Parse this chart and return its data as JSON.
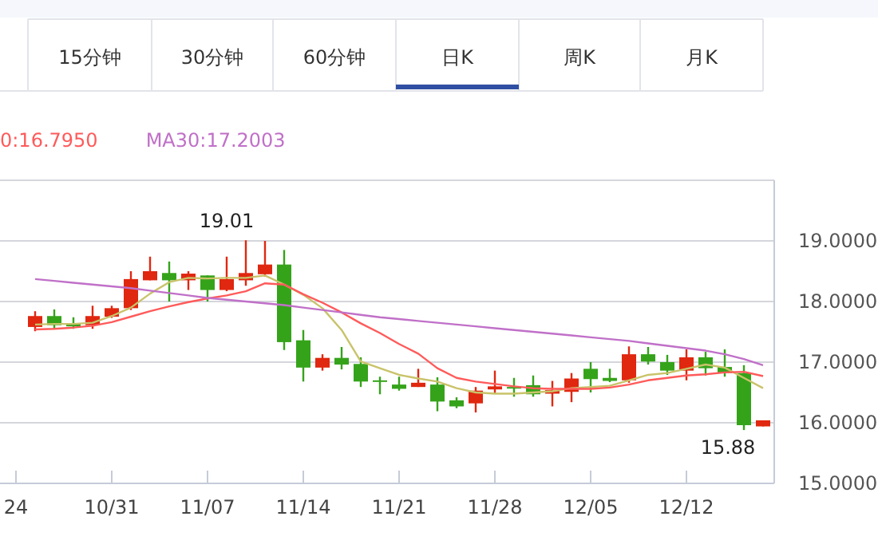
{
  "chart_data": {
    "type": "candlestick",
    "categories": [
      "24",
      null,
      null,
      null,
      null,
      "10/31",
      null,
      null,
      null,
      null,
      "11/07",
      null,
      null,
      null,
      null,
      "11/14",
      null,
      null,
      null,
      null,
      "11/21",
      null,
      null,
      null,
      null,
      "11/28",
      null,
      null,
      null,
      null,
      "12/05",
      null,
      null,
      null,
      null,
      "12/12",
      null,
      null,
      null,
      null
    ],
    "ohlc": [
      null,
      [
        17.58,
        17.84,
        17.51,
        17.76
      ],
      [
        17.76,
        17.87,
        17.55,
        17.61
      ],
      [
        17.63,
        17.74,
        17.55,
        17.59
      ],
      [
        17.61,
        17.93,
        17.55,
        17.76
      ],
      [
        17.75,
        17.93,
        17.73,
        17.89
      ],
      [
        17.89,
        18.5,
        17.86,
        18.37
      ],
      [
        18.35,
        18.74,
        18.35,
        18.5
      ],
      [
        18.47,
        18.66,
        18.0,
        18.35
      ],
      [
        18.35,
        18.5,
        18.19,
        18.46
      ],
      [
        18.43,
        18.43,
        18.0,
        18.19
      ],
      [
        18.19,
        18.74,
        18.17,
        18.37
      ],
      [
        18.35,
        19.01,
        18.26,
        18.47
      ],
      [
        18.45,
        19.0,
        18.41,
        18.61
      ],
      [
        18.61,
        18.85,
        17.2,
        17.33
      ],
      [
        17.36,
        17.53,
        16.68,
        16.91
      ],
      [
        16.91,
        17.13,
        16.86,
        17.07
      ],
      [
        17.07,
        17.25,
        16.88,
        16.96
      ],
      [
        16.97,
        17.08,
        16.59,
        16.68
      ],
      [
        16.7,
        16.76,
        16.47,
        16.68
      ],
      [
        16.63,
        16.76,
        16.53,
        16.56
      ],
      [
        16.59,
        16.89,
        16.59,
        16.66
      ],
      [
        16.63,
        16.75,
        16.19,
        16.35
      ],
      [
        16.37,
        16.42,
        16.24,
        16.27
      ],
      [
        16.32,
        16.59,
        16.17,
        16.53
      ],
      [
        16.55,
        16.86,
        16.48,
        16.6
      ],
      [
        16.59,
        16.74,
        16.43,
        16.57
      ],
      [
        16.62,
        16.78,
        16.43,
        16.47
      ],
      [
        16.48,
        16.69,
        16.27,
        16.54
      ],
      [
        16.51,
        16.82,
        16.34,
        16.73
      ],
      [
        16.89,
        17.0,
        16.5,
        16.72
      ],
      [
        16.74,
        16.89,
        16.67,
        16.69
      ],
      [
        16.7,
        17.26,
        16.66,
        17.13
      ],
      [
        17.13,
        17.25,
        16.96,
        17.01
      ],
      [
        17.0,
        17.12,
        16.79,
        16.86
      ],
      [
        16.86,
        17.21,
        16.7,
        17.08
      ],
      [
        17.08,
        17.17,
        16.78,
        16.9
      ],
      [
        16.92,
        17.21,
        16.76,
        16.82
      ],
      [
        16.82,
        16.95,
        15.88,
        15.96
      ],
      [
        15.94,
        16.04,
        15.94,
        16.04
      ]
    ],
    "colors": [
      null,
      "#e0270f",
      "#35a31a",
      "#35a31a",
      "#e0270f",
      "#e0270f",
      "#e0270f",
      "#e0270f",
      "#35a31a",
      "#e0270f",
      "#35a31a",
      "#e0270f",
      "#e0270f",
      "#e0270f",
      "#35a31a",
      "#35a31a",
      "#e0270f",
      "#35a31a",
      "#35a31a",
      "#35a31a",
      "#35a31a",
      "#e0270f",
      "#35a31a",
      "#35a31a",
      "#e0270f",
      "#e0270f",
      "#35a31a",
      "#35a31a",
      "#e0270f",
      "#e0270f",
      "#35a31a",
      "#35a31a",
      "#e0270f",
      "#35a31a",
      "#35a31a",
      "#e0270f",
      "#35a31a",
      "#35a31a",
      "#35a31a",
      "#e0270f"
    ],
    "series": [
      {
        "type": "line",
        "color": "#c9c36a",
        "values": [
          null,
          17.62,
          17.63,
          17.63,
          17.65,
          17.76,
          17.9,
          18.13,
          18.32,
          18.39,
          18.38,
          18.39,
          18.39,
          18.43,
          18.28,
          18.11,
          17.89,
          17.53,
          17.01,
          16.9,
          16.79,
          16.73,
          16.68,
          16.57,
          16.5,
          16.48,
          16.48,
          16.5,
          16.52,
          16.57,
          16.59,
          16.61,
          16.7,
          16.79,
          16.82,
          16.89,
          16.96,
          16.91,
          16.74,
          16.57
        ]
      },
      {
        "type": "line",
        "name": "0:16.7950",
        "color": "#ff5a5a",
        "values": [
          null,
          17.54,
          17.55,
          17.57,
          17.6,
          17.66,
          17.75,
          17.84,
          17.92,
          17.99,
          18.05,
          18.1,
          18.17,
          18.3,
          18.28,
          18.12,
          17.98,
          17.82,
          17.64,
          17.48,
          17.3,
          17.14,
          16.9,
          16.74,
          16.68,
          16.64,
          16.6,
          16.57,
          16.56,
          16.56,
          16.56,
          16.58,
          16.63,
          16.7,
          16.74,
          16.78,
          16.8,
          16.83,
          16.84,
          16.77
        ]
      },
      {
        "type": "line",
        "name": "MA30:17.2003",
        "color": "#c070c8",
        "values": [
          null,
          18.37,
          18.34,
          18.31,
          18.28,
          18.25,
          18.22,
          18.18,
          18.14,
          18.1,
          18.06,
          18.03,
          18.0,
          17.97,
          17.94,
          17.9,
          17.86,
          17.82,
          17.78,
          17.74,
          17.71,
          17.68,
          17.65,
          17.62,
          17.59,
          17.56,
          17.53,
          17.5,
          17.47,
          17.44,
          17.41,
          17.38,
          17.35,
          17.31,
          17.27,
          17.23,
          17.19,
          17.13,
          17.05,
          16.95
        ]
      }
    ],
    "ylim": [
      15,
      20
    ],
    "yticks": [
      {
        "value": 15,
        "label": "15.0000"
      },
      {
        "value": 16,
        "label": "16.0000"
      },
      {
        "value": 17,
        "label": "17.0000"
      },
      {
        "value": 18,
        "label": "18.0000"
      },
      {
        "value": 19,
        "label": "19.0000"
      }
    ],
    "grid": "y",
    "legend": "top left",
    "annotations": [
      "15分钟",
      "30分钟",
      "60分钟",
      "日K",
      "周K",
      "月K",
      "19.01",
      "15.88"
    ]
  }
}
